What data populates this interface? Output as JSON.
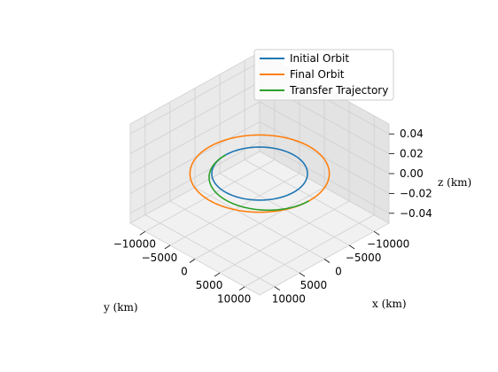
{
  "chart_data": {
    "type": "line3d",
    "xlabel": "x (km)",
    "ylabel": "y (km)",
    "zlabel": "z (km)",
    "x_ticks": [
      "10000",
      "5000",
      "0",
      "−5000",
      "−10000"
    ],
    "y_ticks": [
      "−10000",
      "−5000",
      "0",
      "5000",
      "10000"
    ],
    "z_ticks": [
      "0.04",
      "0.02",
      "0.00",
      "−0.02",
      "−0.04"
    ],
    "xlim": [
      -13000,
      13000
    ],
    "ylim": [
      -13000,
      13000
    ],
    "zlim": [
      -0.05,
      0.05
    ],
    "grid": true,
    "legend": "top-right",
    "series": [
      {
        "name": "Initial Orbit",
        "color": "#1f77b4",
        "radius_km": 6800,
        "theta_range_deg": [
          0,
          360
        ]
      },
      {
        "name": "Final Orbit",
        "color": "#ff7f0e",
        "radius_km": 9900,
        "theta_range_deg": [
          0,
          360
        ]
      },
      {
        "name": "Transfer Trajectory",
        "color": "#2ca02c",
        "radius_km": [
          6800,
          9900
        ],
        "theta_range_deg": [
          0,
          180
        ]
      }
    ]
  }
}
